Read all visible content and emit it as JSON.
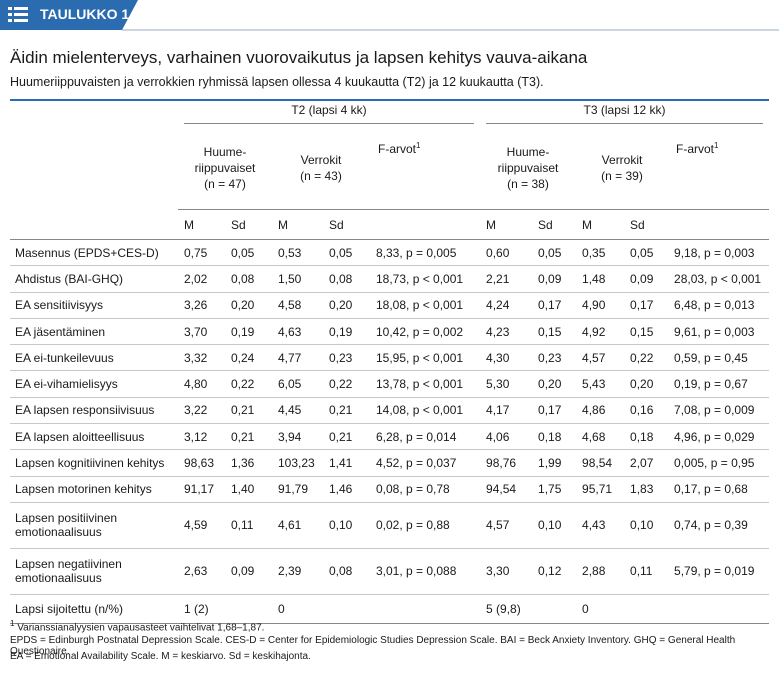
{
  "header": {
    "label": "TAULUKKO 1."
  },
  "title": "Äidin mielenterveys, varhainen vuorovaikutus ja lapsen kehitys vauva-aikana",
  "subtitle": "Huumeriippuvaisten ja verrokkien ryhmissä lapsen ollessa 4 kuukautta (T2) ja 12 kuukautta (T3).",
  "table": {
    "groups": [
      {
        "label": "T2 (lapsi 4 kk)",
        "subgroups": [
          {
            "lines": [
              "Huume-",
              "riippuvaiset",
              "(n = 47)"
            ]
          },
          {
            "lines": [
              "Verrokit",
              "(n = 43)"
            ]
          }
        ],
        "f_label": "F-arvot",
        "f_note": "1"
      },
      {
        "label": "T3 (lapsi 12 kk)",
        "subgroups": [
          {
            "lines": [
              "Huume-",
              "riippuvaiset",
              "(n = 38)"
            ]
          },
          {
            "lines": [
              "Verrokit",
              "(n = 39)"
            ]
          }
        ],
        "f_label": "F-arvot",
        "f_note": "1"
      }
    ],
    "stat_headers": [
      "M",
      "Sd",
      "M",
      "Sd",
      "M",
      "Sd",
      "M",
      "Sd"
    ],
    "rows": [
      {
        "label": "Masennus (EPDS+CES-D)",
        "cells": [
          "0,75",
          "0,05",
          "0,53",
          "0,05",
          "8,33, p = 0,005",
          "0,60",
          "0,05",
          "0,35",
          "0,05",
          "9,18, p = 0,003"
        ]
      },
      {
        "label": "Ahdistus (BAI-GHQ)",
        "cells": [
          "2,02",
          "0,08",
          "1,50",
          "0,08",
          "18,73, p < 0,001",
          "2,21",
          "0,09",
          "1,48",
          "0,09",
          "28,03, p < 0,001"
        ]
      },
      {
        "label": "EA sensitiivisyys",
        "cells": [
          "3,26",
          "0,20",
          "4,58",
          "0,20",
          "18,08, p < 0,001",
          "4,24",
          "0,17",
          "4,90",
          "0,17",
          "6,48, p = 0,013"
        ]
      },
      {
        "label": "EA jäsentäminen",
        "cells": [
          "3,70",
          "0,19",
          "4,63",
          "0,19",
          "10,42, p = 0,002",
          "4,23",
          "0,15",
          "4,92",
          "0,15",
          "9,61, p = 0,003"
        ]
      },
      {
        "label": "EA ei-tunkeilevuus",
        "cells": [
          "3,32",
          "0,24",
          "4,77",
          "0,23",
          "15,95, p < 0,001",
          "4,30",
          "0,23",
          "4,57",
          "0,22",
          "0,59, p = 0,45"
        ]
      },
      {
        "label": "EA ei-vihamielisyys",
        "cells": [
          "4,80",
          "0,22",
          "6,05",
          "0,22",
          "13,78, p < 0,001",
          "5,30",
          "0,20",
          "5,43",
          "0,20",
          "0,19, p = 0,67"
        ]
      },
      {
        "label": "EA lapsen responsiivisuus",
        "cells": [
          "3,22",
          "0,21",
          "4,45",
          "0,21",
          "14,08, p < 0,001",
          "4,17",
          "0,17",
          "4,86",
          "0,16",
          "7,08, p = 0,009"
        ]
      },
      {
        "label": "EA lapsen aloitteellisuus",
        "cells": [
          "3,12",
          "0,21",
          "3,94",
          "0,21",
          "6,28, p = 0,014",
          "4,06",
          "0,18",
          "4,68",
          "0,18",
          "4,96, p = 0,029"
        ]
      },
      {
        "label": "Lapsen kognitiivinen kehitys",
        "cells": [
          "98,63",
          "1,36",
          "103,23",
          "1,41",
          "4,52, p = 0,037",
          "98,76",
          "1,99",
          "98,54",
          "2,07",
          "0,005, p = 0,95"
        ]
      },
      {
        "label": "Lapsen motorinen kehitys",
        "cells": [
          "91,17",
          "1,40",
          "91,79",
          "1,46",
          "0,08, p = 0,78",
          "94,54",
          "1,75",
          "95,71",
          "1,83",
          "0,17, p = 0,68"
        ]
      },
      {
        "label": "Lapsen positiivinen emotionaalisuus",
        "cells": [
          "4,59",
          "0,11",
          "4,61",
          "0,10",
          "0,02, p = 0,88",
          "4,57",
          "0,10",
          "4,43",
          "0,10",
          "0,74, p = 0,39"
        ]
      },
      {
        "label": "Lapsen negatiivinen emotionaalisuus",
        "cells": [
          "2,63",
          "0,09",
          "2,39",
          "0,08",
          "3,01, p = 0,088",
          "3,30",
          "0,12",
          "2,88",
          "0,11",
          "5,79, p = 0,019"
        ]
      },
      {
        "label": "Lapsi sijoitettu (n/%)",
        "cells": [
          "1 (2)",
          null,
          "0",
          null,
          null,
          "5 (9,8)",
          null,
          "0",
          null,
          null
        ]
      }
    ]
  },
  "footnotes": {
    "note_mark": "1",
    "note_text": "Varianssianalyysien vapausasteet vaihtelivat 1,68–1,87.",
    "lines": [
      "EPDS = Edinburgh Postnatal Depression Scale. CES-D = Center for Epidemiologic Studies Depression Scale. BAI = Beck Anxiety Inventory. GHQ = General Health Questionaire.",
      "EA = Emotional Availability Scale. M = keskiarvo. Sd = keskihajonta."
    ]
  }
}
